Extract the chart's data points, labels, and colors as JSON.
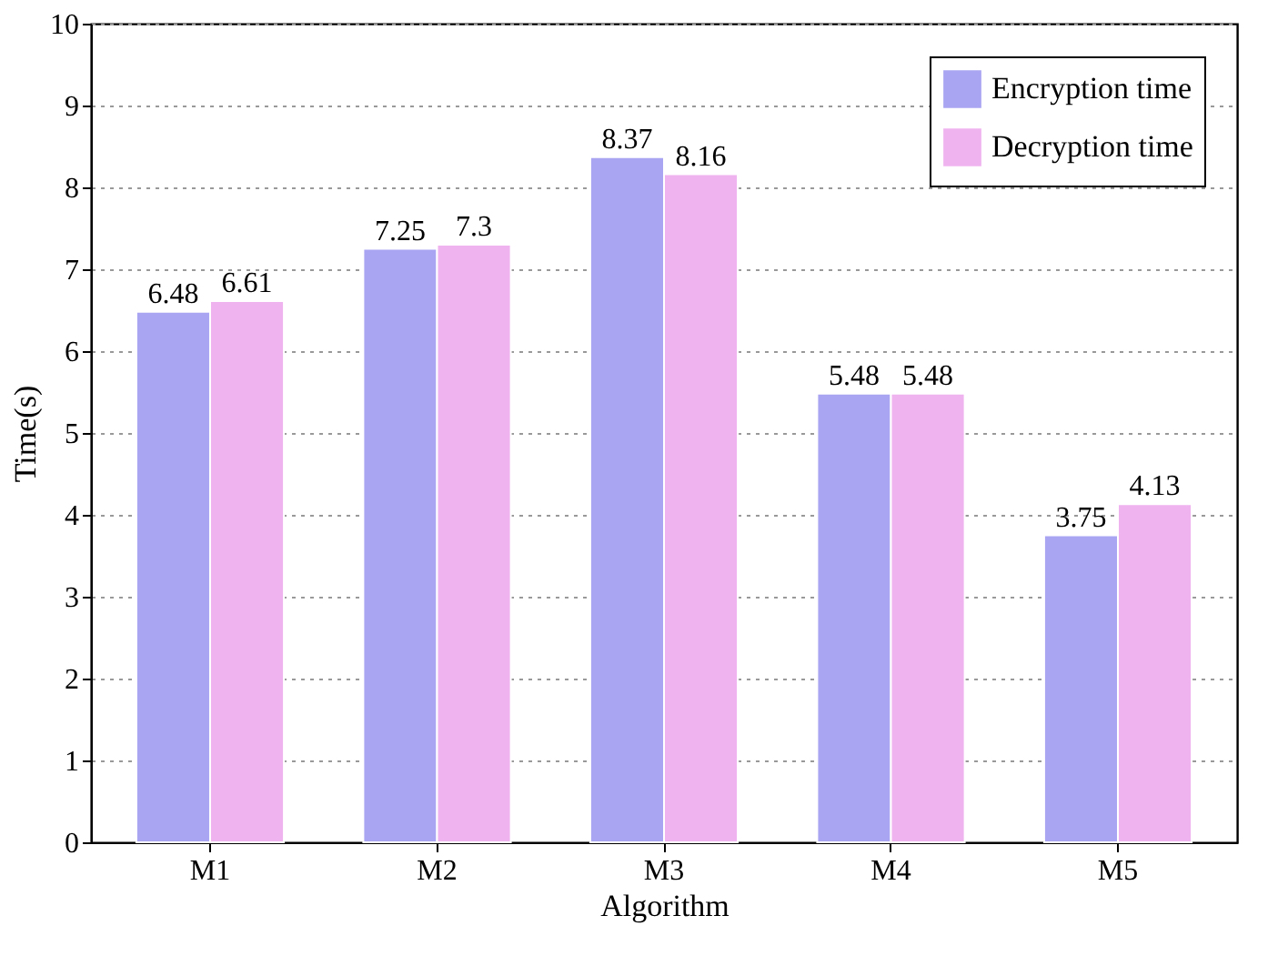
{
  "chart_data": {
    "type": "bar",
    "xlabel": "Algorithm",
    "ylabel": "Time(s)",
    "categories": [
      "M1",
      "M2",
      "M3",
      "M4",
      "M5"
    ],
    "series": [
      {
        "name": "Encryption time",
        "color": "#a9a5f2",
        "values": [
          6.48,
          7.25,
          8.37,
          5.48,
          3.75
        ]
      },
      {
        "name": "Decryption time",
        "color": "#efb3ef",
        "values": [
          6.61,
          7.3,
          8.16,
          5.48,
          4.13
        ]
      }
    ],
    "ylim": [
      0,
      10
    ],
    "yticks": [
      0,
      1,
      2,
      3,
      4,
      5,
      6,
      7,
      8,
      9,
      10
    ],
    "grid": "y",
    "legend": "top right",
    "data_labels": true
  }
}
